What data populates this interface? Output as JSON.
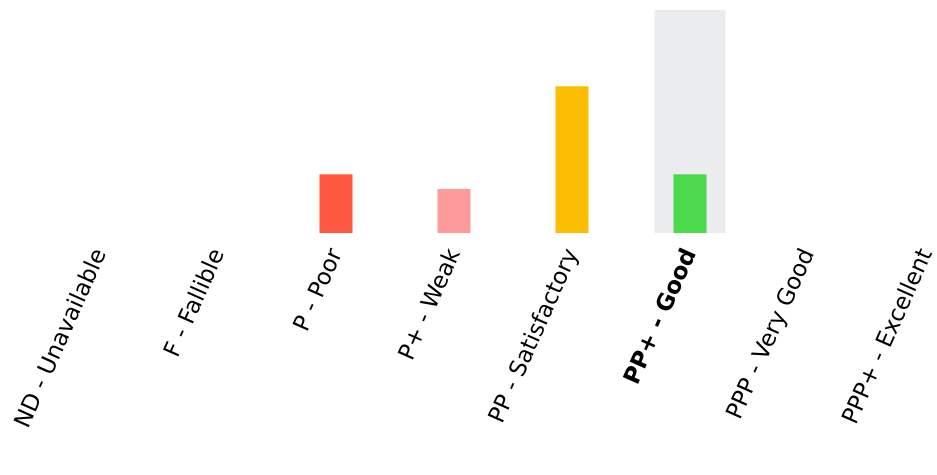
{
  "chart_data": {
    "type": "bar",
    "categories": [
      "ND - Unavailable",
      "F - Fallible",
      "P - Poor",
      "P+ - Weak",
      "PP - Satisfactory",
      "PP+ - Good",
      "PPP - Very Good",
      "PPP+ - Excellent"
    ],
    "values": [
      0,
      0,
      10,
      7.5,
      25,
      10,
      0,
      0
    ],
    "ylim": [
      0,
      38
    ],
    "highlighted_category": "PP+ - Good",
    "highlight_band_color": "#ebecee",
    "bar_colors": [
      "#cccccc",
      "#cccccc",
      "#ff5840",
      "#ff9a9a",
      "#fbbc04",
      "#4cd94c",
      "#cccccc",
      "#cccccc"
    ],
    "grid": false,
    "legend": "none",
    "title": "",
    "xlabel": "",
    "ylabel": ""
  }
}
